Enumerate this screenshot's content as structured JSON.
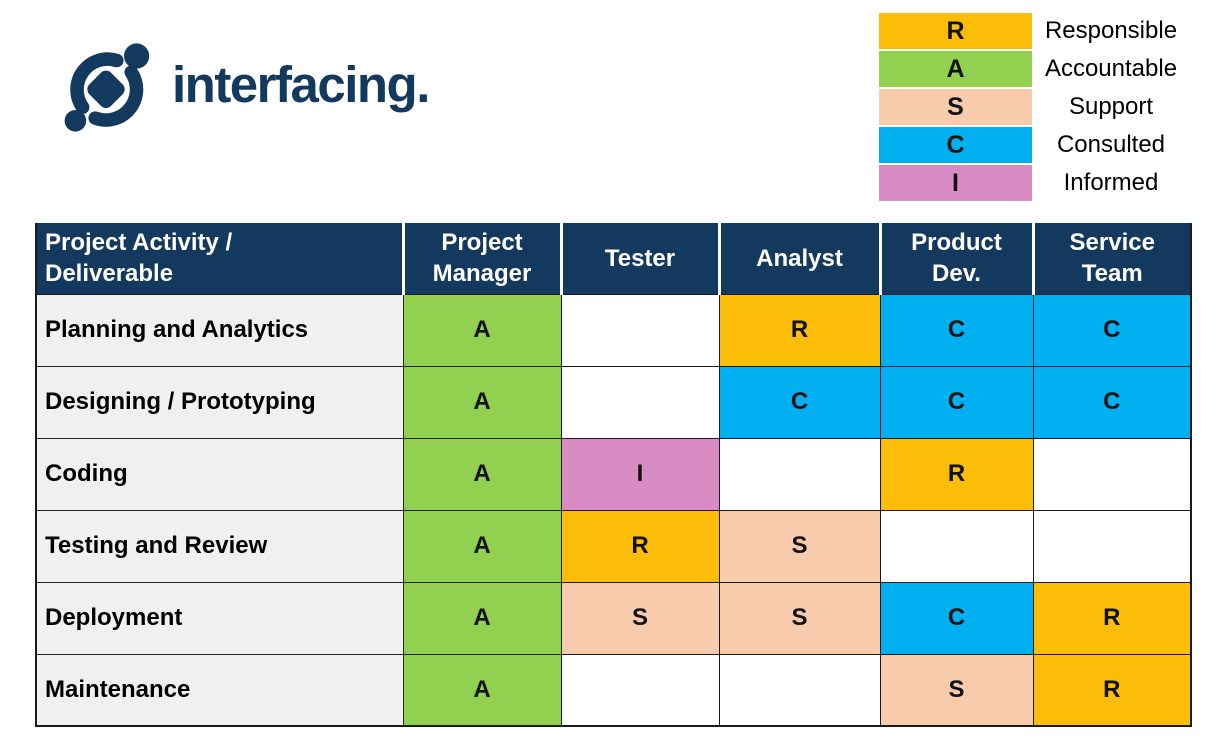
{
  "logo": {
    "brand_text": "interfacing.",
    "color": "#14395E"
  },
  "colors": {
    "navy_header": "#14395E",
    "responsible_gold": "#FCBD08",
    "accountable_green": "#92D050",
    "support_peach": "#F8CBAD",
    "consulted_cyan": "#00B0F0",
    "informed_pink": "#D98CC3",
    "row_label_bg": "#F0F0F0",
    "header_text": "#FFFFFF",
    "cell_text": "#111111"
  },
  "chart_data": {
    "type": "table",
    "columns": [
      "Project Activity / Deliverable",
      "Project Manager",
      "Tester",
      "Analyst",
      "Product Dev.",
      "Service Team"
    ],
    "header_display": [
      "Project Activity /\nDeliverable",
      "Project\nManager",
      "Tester",
      "Analyst",
      "Product\nDev.",
      "Service\nTeam"
    ],
    "rows": [
      {
        "activity": "Planning and Analytics",
        "assignments": [
          "A",
          "",
          "R",
          "C",
          "C"
        ]
      },
      {
        "activity": "Designing / Prototyping",
        "assignments": [
          "A",
          "",
          "C",
          "C",
          "C"
        ]
      },
      {
        "activity": "Coding",
        "assignments": [
          "A",
          "I",
          "",
          "R",
          ""
        ]
      },
      {
        "activity": "Testing and Review",
        "assignments": [
          "A",
          "R",
          "S",
          "",
          ""
        ]
      },
      {
        "activity": "Deployment",
        "assignments": [
          "A",
          "S",
          "S",
          "C",
          "R"
        ]
      },
      {
        "activity": "Maintenance",
        "assignments": [
          "A",
          "",
          "",
          "S",
          "R"
        ]
      }
    ],
    "legend": [
      {
        "code": "R",
        "label": "Responsible",
        "color": "#FCBD08"
      },
      {
        "code": "A",
        "label": "Accountable",
        "color": "#92D050"
      },
      {
        "code": "S",
        "label": "Support",
        "color": "#F8CBAD"
      },
      {
        "code": "C",
        "label": "Consulted",
        "color": "#00B0F0"
      },
      {
        "code": "I",
        "label": "Informed",
        "color": "#D98CC3"
      }
    ],
    "code_colors": {
      "R": "#FCBD08",
      "A": "#92D050",
      "S": "#F8CBAD",
      "C": "#00B0F0",
      "I": "#D98CC3",
      "": "#FFFFFF"
    },
    "legend_position": "top-right",
    "grid": true
  }
}
